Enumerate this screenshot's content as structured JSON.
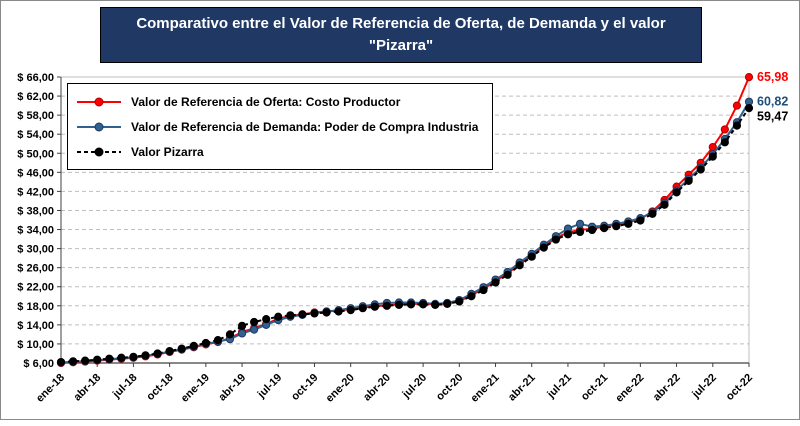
{
  "header": {
    "line1": "Comparativo entre el Valor de Referencia de Oferta, de Demanda y el valor",
    "line2": "\"Pizarra\""
  },
  "chart_data": {
    "type": "line",
    "title": "Comparativo entre el Valor de Referencia de Oferta, de Demanda y el valor \"Pizarra\"",
    "ylim": [
      6,
      66
    ],
    "ytick_step": 4,
    "y_tick_labels": [
      "$ 6,00",
      "$ 10,00",
      "$ 14,00",
      "$ 18,00",
      "$ 22,00",
      "$ 26,00",
      "$ 30,00",
      "$ 34,00",
      "$ 38,00",
      "$ 42,00",
      "$ 46,00",
      "$ 50,00",
      "$ 54,00",
      "$ 58,00",
      "$ 62,00",
      "$ 66,00"
    ],
    "x_tick_labels": [
      "ene-18",
      "abr-18",
      "jul-18",
      "oct-18",
      "ene-19",
      "abr-19",
      "jul-19",
      "oct-19",
      "ene-20",
      "abr-20",
      "jul-20",
      "oct-20",
      "ene-21",
      "abr-21",
      "jul-21",
      "oct-21",
      "ene-22",
      "abr-22",
      "jul-22",
      "oct-22"
    ],
    "points_per_tick": 3,
    "x_unit": "month",
    "grid": "horizontal-dashed",
    "legend_position": "top-left-inside",
    "series": [
      {
        "name": "Valor de Referencia de Oferta: Costo Productor",
        "color": "#FF0000",
        "marker_fill": "#FF0000",
        "marker_edge": "#B00000",
        "label_color": "#FF0000",
        "dash": null,
        "end_label": "65,98",
        "values": [
          6.0,
          6.15,
          6.3,
          6.5,
          6.7,
          6.9,
          7.1,
          7.4,
          7.8,
          8.3,
          8.8,
          9.3,
          9.9,
          10.4,
          11.2,
          12.5,
          13.3,
          14.2,
          15.3,
          15.9,
          16.2,
          16.6,
          16.8,
          17.0,
          17.3,
          17.6,
          17.9,
          18.1,
          18.3,
          18.4,
          18.4,
          18.3,
          18.5,
          19.0,
          20.2,
          21.6,
          23.2,
          24.8,
          26.8,
          28.6,
          30.5,
          32.2,
          33.4,
          33.9,
          34.2,
          34.6,
          35.0,
          35.5,
          36.2,
          37.8,
          40.2,
          43.0,
          45.5,
          48.0,
          51.3,
          55.0,
          60.0,
          65.98
        ]
      },
      {
        "name": "Valor de Referencia de Demanda: Poder de Compra Industria",
        "color": "#31618F",
        "marker_fill": "#31618F",
        "marker_edge": "#1F3864",
        "label_color": "#1F4E79",
        "dash": null,
        "end_label": "60,82",
        "values": [
          6.1,
          6.25,
          6.4,
          6.6,
          6.8,
          7.0,
          7.2,
          7.5,
          7.9,
          8.4,
          8.9,
          9.4,
          10.0,
          10.5,
          11.0,
          12.2,
          13.0,
          14.0,
          15.0,
          15.7,
          16.1,
          16.5,
          16.8,
          17.1,
          17.5,
          17.9,
          18.3,
          18.6,
          18.7,
          18.7,
          18.6,
          18.4,
          18.6,
          19.2,
          20.5,
          21.9,
          23.5,
          25.1,
          27.1,
          28.9,
          30.8,
          32.6,
          34.2,
          35.2,
          34.6,
          34.8,
          35.2,
          35.7,
          36.4,
          37.6,
          39.6,
          42.2,
          44.6,
          47.0,
          49.8,
          53.0,
          56.5,
          60.82
        ]
      },
      {
        "name": "Valor Pizarra",
        "color": "#000000",
        "marker_fill": "#000000",
        "marker_edge": "#000000",
        "label_color": "#000000",
        "dash": "dashed",
        "end_label": "59,47",
        "values": [
          6.2,
          6.35,
          6.5,
          6.7,
          6.9,
          7.1,
          7.3,
          7.6,
          8.0,
          8.5,
          9.0,
          9.6,
          10.2,
          10.8,
          12.0,
          13.8,
          14.6,
          15.2,
          15.7,
          16.0,
          16.2,
          16.4,
          16.6,
          16.8,
          17.1,
          17.5,
          17.8,
          18.0,
          18.2,
          18.3,
          18.3,
          18.2,
          18.4,
          18.9,
          20.0,
          21.3,
          22.9,
          24.5,
          26.5,
          28.3,
          30.2,
          31.9,
          33.0,
          33.5,
          33.9,
          34.3,
          34.7,
          35.2,
          35.9,
          37.3,
          39.2,
          41.8,
          44.2,
          46.6,
          49.3,
          52.3,
          55.8,
          59.47
        ]
      }
    ]
  }
}
